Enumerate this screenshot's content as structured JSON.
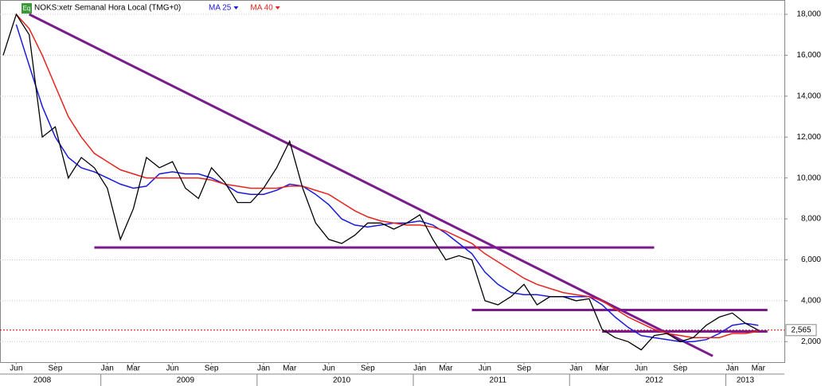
{
  "chart_data": {
    "type": "line",
    "title": "NOKS:xetr Semanal Hora Local (TMG+0)",
    "badge": "Eq",
    "categories": [
      null,
      "Jun",
      null,
      null,
      "Sep",
      null,
      null,
      null,
      "Jan",
      null,
      "Mar",
      null,
      null,
      "Jun",
      null,
      null,
      "Sep",
      null,
      null,
      null,
      "Jan",
      null,
      "Mar",
      null,
      null,
      "Jun",
      null,
      null,
      "Sep",
      null,
      null,
      null,
      "Jan",
      null,
      "Mar",
      null,
      null,
      "Jun",
      null,
      null,
      "Sep",
      null,
      null,
      null,
      "Jan",
      null,
      "Mar",
      null,
      null,
      "Jun",
      null,
      null,
      "Sep",
      null,
      null,
      null,
      "Jan",
      null,
      "Mar"
    ],
    "years": [
      null,
      null,
      null,
      "2008",
      null,
      null,
      null,
      null,
      null,
      null,
      null,
      null,
      null,
      null,
      "2009",
      null,
      null,
      null,
      null,
      null,
      null,
      null,
      null,
      null,
      null,
      null,
      "2010",
      null,
      null,
      null,
      null,
      null,
      null,
      null,
      null,
      null,
      null,
      null,
      "2011",
      null,
      null,
      null,
      null,
      null,
      null,
      null,
      null,
      null,
      null,
      null,
      "2012",
      null,
      null,
      null,
      null,
      null,
      null,
      "2013",
      null
    ],
    "series": [
      {
        "name": "NOKS:xetr",
        "color": "#000000",
        "values": [
          16000,
          18000,
          17000,
          12000,
          12500,
          10000,
          11000,
          10500,
          9500,
          7000,
          8500,
          11000,
          10500,
          10800,
          9500,
          9000,
          10500,
          9800,
          8800,
          8800,
          9500,
          10500,
          11800,
          9500,
          7800,
          7000,
          6800,
          7200,
          7800,
          7800,
          7500,
          7800,
          8200,
          7000,
          6000,
          6200,
          6000,
          4000,
          3800,
          4200,
          4800,
          3800,
          4200,
          4200,
          4000,
          4100,
          2600,
          2200,
          2000,
          1600,
          2300,
          2400,
          2000,
          2200,
          2800,
          3200,
          3400,
          2900,
          2565
        ]
      },
      {
        "name": "MA 25",
        "color": "#1a1adc",
        "values": [
          null,
          17500,
          15500,
          13500,
          12000,
          11000,
          10500,
          10300,
          10000,
          9700,
          9500,
          9600,
          10200,
          10300,
          10200,
          10200,
          10000,
          9700,
          9300,
          9200,
          9200,
          9400,
          9700,
          9600,
          9200,
          8700,
          8000,
          7700,
          7600,
          7700,
          7800,
          7800,
          7900,
          7700,
          7300,
          6800,
          6300,
          5400,
          4800,
          4400,
          4300,
          4300,
          4200,
          4200,
          4200,
          4200,
          3800,
          3200,
          2700,
          2300,
          2200,
          2100,
          2000,
          2000,
          2100,
          2400,
          2800,
          2900,
          2800
        ]
      },
      {
        "name": "MA 40",
        "color": "#e8231e",
        "values": [
          null,
          18000,
          17300,
          16000,
          14500,
          13000,
          12000,
          11200,
          10800,
          10400,
          10200,
          10000,
          10000,
          10000,
          10000,
          10000,
          9900,
          9700,
          9600,
          9500,
          9500,
          9500,
          9600,
          9600,
          9400,
          9200,
          8800,
          8400,
          8100,
          7900,
          7800,
          7700,
          7700,
          7600,
          7400,
          7100,
          6800,
          6300,
          5900,
          5500,
          5100,
          4800,
          4600,
          4400,
          4300,
          4200,
          4000,
          3600,
          3200,
          2900,
          2600,
          2400,
          2300,
          2200,
          2200,
          2200,
          2400,
          2400,
          2500
        ]
      }
    ],
    "lines": [
      {
        "color": "#7b1a8c",
        "x": [
          2,
          54.5
        ],
        "y": [
          18000,
          1300
        ]
      },
      {
        "color": "#7b1a8c",
        "x": [
          7,
          50
        ],
        "y": [
          6600,
          6600
        ]
      },
      {
        "color": "#7b1a8c",
        "x": [
          36,
          58.7
        ],
        "y": [
          3550,
          3550
        ]
      },
      {
        "color": "#7b1a8c",
        "x": [
          46,
          58.7
        ],
        "y": [
          2500,
          2500
        ]
      }
    ],
    "last_value": 2565,
    "last_value_label": "2,565",
    "last_value_color": "#cc0000",
    "ylim": [
      1000,
      18700
    ],
    "yticks": [
      {
        "value": 2000,
        "label": "2,000"
      },
      {
        "value": 4000,
        "label": "4,000"
      },
      {
        "value": 6000,
        "label": "6,000"
      },
      {
        "value": 8000,
        "label": "8,000"
      },
      {
        "value": 10000,
        "label": "10,000"
      },
      {
        "value": 12000,
        "label": "12,000"
      },
      {
        "value": 14000,
        "label": "14,000"
      },
      {
        "value": 16000,
        "label": "16,000"
      },
      {
        "value": 18000,
        "label": "18,000"
      }
    ],
    "grid": true
  }
}
